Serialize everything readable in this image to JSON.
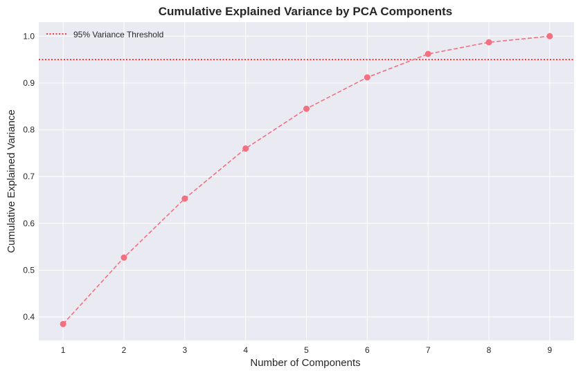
{
  "chart_data": {
    "type": "line",
    "title": "Cumulative Explained Variance by PCA Components",
    "xlabel": "Number of Components",
    "ylabel": "Cumulative Explained Variance",
    "x": [
      1,
      2,
      3,
      4,
      5,
      6,
      7,
      8,
      9
    ],
    "xticks": [
      "1",
      "2",
      "3",
      "4",
      "5",
      "6",
      "7",
      "8",
      "9"
    ],
    "xlim": [
      0.6,
      9.4
    ],
    "ylim": [
      0.35,
      1.03
    ],
    "yticks": [
      "0.4",
      "0.5",
      "0.6",
      "0.7",
      "0.8",
      "0.9",
      "1.0"
    ],
    "grid": true,
    "series": [
      {
        "name": "Cumulative Explained Variance",
        "values": [
          0.385,
          0.527,
          0.653,
          0.76,
          0.845,
          0.912,
          0.962,
          0.987,
          1.0
        ],
        "color": "#f2707f",
        "line_style": "dashed",
        "marker": "circle"
      }
    ],
    "threshold": {
      "label": "95% Variance Threshold",
      "value": 0.95,
      "color": "#ff0000",
      "line_style": "dotted"
    },
    "legend_position": "top-left",
    "colors": {
      "plot_background": "#eaeaf2",
      "grid": "#ffffff",
      "text": "#262626"
    }
  }
}
